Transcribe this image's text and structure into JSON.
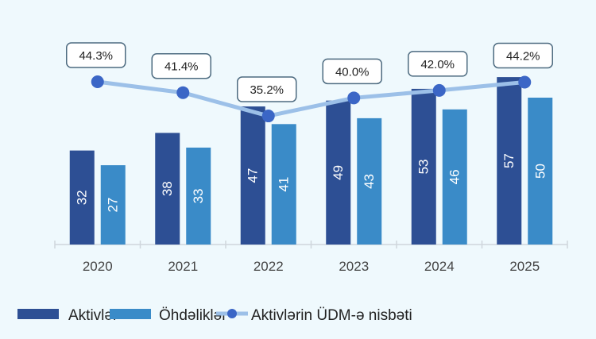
{
  "chart_data": {
    "type": "bar",
    "categories": [
      "2020",
      "2021",
      "2022",
      "2023",
      "2024",
      "2025"
    ],
    "series": [
      {
        "name": "Aktivlər",
        "kind": "bar",
        "color": "#2d4f94",
        "values": [
          32,
          38,
          47,
          49,
          53,
          57
        ]
      },
      {
        "name": "Öhdəliklər",
        "kind": "bar",
        "color": "#3a8bc8",
        "values": [
          27,
          33,
          41,
          43,
          46,
          50
        ]
      },
      {
        "name": "Aktivlərin ÜDM-ə nisbəti",
        "kind": "line",
        "color": "#9cc0e8",
        "marker_color": "#3b66c6",
        "unit": "%",
        "values": [
          44.3,
          41.4,
          35.2,
          40.0,
          42.0,
          44.2
        ],
        "labels": [
          "44.3%",
          "41.4%",
          "35.2%",
          "40.0%",
          "42.0%",
          "44.2%"
        ]
      }
    ],
    "title": "",
    "xlabel": "",
    "ylabel": "",
    "legend_position": "bottom",
    "grid": false
  }
}
